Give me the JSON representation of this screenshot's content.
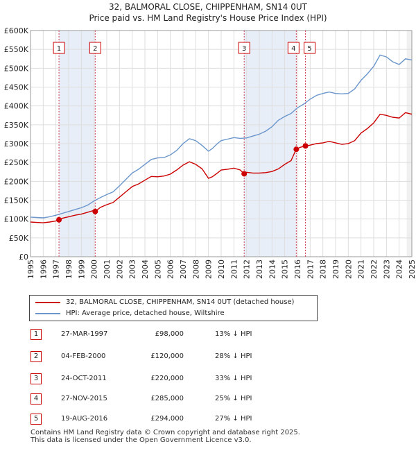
{
  "title_line1": "32, BALMORAL CLOSE, CHIPPENHAM, SN14 0UT",
  "title_line2": "Price paid vs. HM Land Registry's House Price Index (HPI)",
  "colors": {
    "property": "#cc0000",
    "hpi": "#6a96cc",
    "band": "#e8eef8",
    "vline": "#d04050"
  },
  "chart_data": {
    "type": "line",
    "title": "32, BALMORAL CLOSE, CHIPPENHAM, SN14 0UT Price paid vs. HM Land Registry's House Price Index (HPI)",
    "xlabel": "",
    "ylabel": "",
    "xlim": [
      1995,
      2025
    ],
    "ylim": [
      0,
      600000
    ],
    "x_ticks": [
      "1995",
      "1996",
      "1997",
      "1998",
      "1999",
      "2000",
      "2001",
      "2002",
      "2003",
      "2004",
      "2005",
      "2006",
      "2007",
      "2008",
      "2009",
      "2010",
      "2011",
      "2012",
      "2013",
      "2014",
      "2015",
      "2016",
      "2017",
      "2018",
      "2019",
      "2020",
      "2021",
      "2022",
      "2023",
      "2024",
      "2025"
    ],
    "y_ticks": [
      {
        "value": 0,
        "label": "£0"
      },
      {
        "value": 50000,
        "label": "£50K"
      },
      {
        "value": 100000,
        "label": "£100K"
      },
      {
        "value": 150000,
        "label": "£150K"
      },
      {
        "value": 200000,
        "label": "£200K"
      },
      {
        "value": 250000,
        "label": "£250K"
      },
      {
        "value": 300000,
        "label": "£300K"
      },
      {
        "value": 350000,
        "label": "£350K"
      },
      {
        "value": 400000,
        "label": "£400K"
      },
      {
        "value": 450000,
        "label": "£450K"
      },
      {
        "value": 500000,
        "label": "£500K"
      },
      {
        "value": 550000,
        "label": "£550K"
      },
      {
        "value": 600000,
        "label": "£600K"
      }
    ],
    "series": [
      {
        "name": "HPI: Average price, detached house, Wiltshire",
        "color": "#6a96cc",
        "points": [
          [
            1995.0,
            105000
          ],
          [
            1995.5,
            104000
          ],
          [
            1996.0,
            103000
          ],
          [
            1996.5,
            106000
          ],
          [
            1997.0,
            110000
          ],
          [
            1997.5,
            115000
          ],
          [
            1998.0,
            120000
          ],
          [
            1998.5,
            125000
          ],
          [
            1999.0,
            130000
          ],
          [
            1999.5,
            137000
          ],
          [
            2000.0,
            148000
          ],
          [
            2000.5,
            157000
          ],
          [
            2001.0,
            165000
          ],
          [
            2001.5,
            172000
          ],
          [
            2002.0,
            188000
          ],
          [
            2002.5,
            205000
          ],
          [
            2003.0,
            222000
          ],
          [
            2003.5,
            232000
          ],
          [
            2004.0,
            245000
          ],
          [
            2004.5,
            258000
          ],
          [
            2005.0,
            262000
          ],
          [
            2005.5,
            263000
          ],
          [
            2006.0,
            270000
          ],
          [
            2006.5,
            282000
          ],
          [
            2007.0,
            300000
          ],
          [
            2007.5,
            313000
          ],
          [
            2008.0,
            308000
          ],
          [
            2008.5,
            295000
          ],
          [
            2009.0,
            280000
          ],
          [
            2009.3,
            287000
          ],
          [
            2009.7,
            300000
          ],
          [
            2010.0,
            308000
          ],
          [
            2010.5,
            312000
          ],
          [
            2011.0,
            316000
          ],
          [
            2011.5,
            314000
          ],
          [
            2012.0,
            315000
          ],
          [
            2012.5,
            320000
          ],
          [
            2013.0,
            325000
          ],
          [
            2013.5,
            333000
          ],
          [
            2014.0,
            345000
          ],
          [
            2014.5,
            362000
          ],
          [
            2015.0,
            372000
          ],
          [
            2015.5,
            380000
          ],
          [
            2016.0,
            395000
          ],
          [
            2016.5,
            405000
          ],
          [
            2017.0,
            418000
          ],
          [
            2017.5,
            428000
          ],
          [
            2018.0,
            433000
          ],
          [
            2018.5,
            437000
          ],
          [
            2019.0,
            433000
          ],
          [
            2019.5,
            432000
          ],
          [
            2020.0,
            433000
          ],
          [
            2020.5,
            445000
          ],
          [
            2021.0,
            468000
          ],
          [
            2021.5,
            485000
          ],
          [
            2022.0,
            505000
          ],
          [
            2022.5,
            535000
          ],
          [
            2023.0,
            530000
          ],
          [
            2023.5,
            517000
          ],
          [
            2024.0,
            510000
          ],
          [
            2024.5,
            525000
          ],
          [
            2025.0,
            522000
          ]
        ]
      },
      {
        "name": "32, BALMORAL CLOSE, CHIPPENHAM, SN14 0UT (detached house)",
        "color": "#cc0000",
        "points": [
          [
            1995.0,
            92000
          ],
          [
            1995.5,
            91000
          ],
          [
            1996.0,
            90000
          ],
          [
            1996.5,
            92000
          ],
          [
            1997.0,
            95000
          ],
          [
            1997.24,
            98000
          ],
          [
            1997.5,
            102000
          ],
          [
            1998.0,
            106000
          ],
          [
            1998.5,
            110000
          ],
          [
            1999.0,
            113000
          ],
          [
            1999.5,
            118000
          ],
          [
            1999.9,
            122000
          ],
          [
            2000.09,
            120000
          ],
          [
            2000.5,
            131000
          ],
          [
            2001.0,
            138000
          ],
          [
            2001.5,
            144000
          ],
          [
            2002.0,
            158000
          ],
          [
            2002.5,
            172000
          ],
          [
            2003.0,
            186000
          ],
          [
            2003.5,
            193000
          ],
          [
            2004.0,
            203000
          ],
          [
            2004.5,
            213000
          ],
          [
            2005.0,
            212000
          ],
          [
            2005.5,
            214000
          ],
          [
            2006.0,
            219000
          ],
          [
            2006.5,
            230000
          ],
          [
            2007.0,
            243000
          ],
          [
            2007.5,
            252000
          ],
          [
            2008.0,
            245000
          ],
          [
            2008.5,
            233000
          ],
          [
            2009.0,
            208000
          ],
          [
            2009.3,
            212000
          ],
          [
            2009.7,
            222000
          ],
          [
            2010.0,
            230000
          ],
          [
            2010.5,
            232000
          ],
          [
            2011.0,
            235000
          ],
          [
            2011.5,
            230000
          ],
          [
            2011.81,
            220000
          ],
          [
            2012.0,
            224000
          ],
          [
            2012.5,
            222000
          ],
          [
            2013.0,
            222000
          ],
          [
            2013.5,
            223000
          ],
          [
            2014.0,
            226000
          ],
          [
            2014.5,
            233000
          ],
          [
            2015.0,
            245000
          ],
          [
            2015.5,
            255000
          ],
          [
            2015.9,
            285000
          ],
          [
            2016.2,
            290000
          ],
          [
            2016.63,
            294000
          ],
          [
            2017.0,
            296000
          ],
          [
            2017.5,
            300000
          ],
          [
            2018.0,
            302000
          ],
          [
            2018.5,
            306000
          ],
          [
            2019.0,
            302000
          ],
          [
            2019.5,
            298000
          ],
          [
            2020.0,
            300000
          ],
          [
            2020.5,
            308000
          ],
          [
            2021.0,
            328000
          ],
          [
            2021.5,
            340000
          ],
          [
            2022.0,
            355000
          ],
          [
            2022.5,
            378000
          ],
          [
            2023.0,
            375000
          ],
          [
            2023.5,
            370000
          ],
          [
            2024.0,
            368000
          ],
          [
            2024.5,
            382000
          ],
          [
            2025.0,
            378000
          ]
        ]
      }
    ],
    "transactions": [
      {
        "id": "1",
        "x": 1997.24,
        "label": "27-MAR-1997",
        "price_label": "£98,000",
        "price": 98000,
        "hpi": "13% ↓ HPI"
      },
      {
        "id": "2",
        "x": 2000.09,
        "label": "04-FEB-2000",
        "price_label": "£120,000",
        "price": 120000,
        "hpi": "28% ↓ HPI"
      },
      {
        "id": "3",
        "x": 2011.81,
        "label": "24-OCT-2011",
        "price_label": "£220,000",
        "price": 220000,
        "hpi": "33% ↓ HPI"
      },
      {
        "id": "4",
        "x": 2015.91,
        "label": "27-NOV-2015",
        "price_label": "£285,000",
        "price": 285000,
        "hpi": "25% ↓ HPI"
      },
      {
        "id": "5",
        "x": 2016.63,
        "label": "19-AUG-2016",
        "price_label": "£294,000",
        "price": 294000,
        "hpi": "27% ↓ HPI"
      }
    ]
  },
  "legend": {
    "property": "32, BALMORAL CLOSE, CHIPPENHAM, SN14 0UT (detached house)",
    "hpi": "HPI: Average price, detached house, Wiltshire"
  },
  "footer_line1": "Contains HM Land Registry data © Crown copyright and database right 2025.",
  "footer_line2": "This data is licensed under the Open Government Licence v3.0."
}
